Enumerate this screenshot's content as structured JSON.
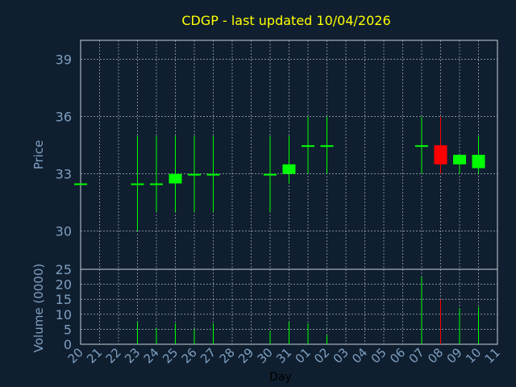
{
  "chart_data": [
    {
      "type": "candlestick",
      "title": "CDGP - last updated 10/04/2026",
      "ylabel": "Price",
      "ylim": [
        28,
        40
      ],
      "y_ticks": [
        30,
        33,
        36,
        39
      ],
      "categories": [
        "20",
        "21",
        "22",
        "23",
        "24",
        "25",
        "26",
        "27",
        "28",
        "29",
        "30",
        "31",
        "01",
        "02",
        "03",
        "04",
        "05",
        "06",
        "07",
        "08",
        "09",
        "10",
        "11"
      ],
      "candles": [
        {
          "day": "20",
          "open": 32.5,
          "high": 32.5,
          "low": 32.5,
          "close": 32.5
        },
        {
          "day": "23",
          "open": 32.5,
          "high": 35.0,
          "low": 30.0,
          "close": 32.5
        },
        {
          "day": "24",
          "open": 32.5,
          "high": 35.0,
          "low": 31.0,
          "close": 32.5
        },
        {
          "day": "25",
          "open": 32.5,
          "high": 35.0,
          "low": 31.0,
          "close": 33.0
        },
        {
          "day": "26",
          "open": 33.0,
          "high": 35.0,
          "low": 31.0,
          "close": 33.0
        },
        {
          "day": "27",
          "open": 33.0,
          "high": 35.0,
          "low": 31.0,
          "close": 33.0
        },
        {
          "day": "30",
          "open": 33.0,
          "high": 35.0,
          "low": 31.0,
          "close": 33.0
        },
        {
          "day": "31",
          "open": 33.0,
          "high": 35.0,
          "low": 32.5,
          "close": 33.5
        },
        {
          "day": "01",
          "open": 34.5,
          "high": 36.0,
          "low": 33.0,
          "close": 34.5
        },
        {
          "day": "02",
          "open": 34.5,
          "high": 36.0,
          "low": 33.0,
          "close": 34.5
        },
        {
          "day": "07",
          "open": 34.5,
          "high": 36.0,
          "low": 33.0,
          "close": 34.5
        },
        {
          "day": "08",
          "open": 34.5,
          "high": 36.0,
          "low": 33.0,
          "close": 33.5
        },
        {
          "day": "09",
          "open": 33.5,
          "high": 34.0,
          "low": 33.0,
          "close": 34.0
        },
        {
          "day": "10",
          "open": 33.3,
          "high": 35.0,
          "low": 33.0,
          "close": 34.0
        }
      ],
      "colors": {
        "up": "#00ff00",
        "down": "#ff0000",
        "grid": "#c8d0d8",
        "title": "#ffff00",
        "axis_text": "#7f9fbf"
      },
      "grid": true
    },
    {
      "type": "bar",
      "ylabel": "Volume (0000)",
      "xlabel": "Day",
      "ylim": [
        0,
        25
      ],
      "y_ticks": [
        0,
        5,
        10,
        15,
        20,
        25
      ],
      "categories": [
        "20",
        "21",
        "22",
        "23",
        "24",
        "25",
        "26",
        "27",
        "28",
        "29",
        "30",
        "31",
        "01",
        "02",
        "03",
        "04",
        "05",
        "06",
        "07",
        "08",
        "09",
        "10",
        "11"
      ],
      "bars": [
        {
          "day": "23",
          "value": 7.5,
          "direction": "up"
        },
        {
          "day": "24",
          "value": 5.5,
          "direction": "up"
        },
        {
          "day": "25",
          "value": 7.0,
          "direction": "up"
        },
        {
          "day": "26",
          "value": 5.0,
          "direction": "up"
        },
        {
          "day": "27",
          "value": 7.0,
          "direction": "up"
        },
        {
          "day": "30",
          "value": 4.5,
          "direction": "up"
        },
        {
          "day": "31",
          "value": 7.5,
          "direction": "up"
        },
        {
          "day": "01",
          "value": 7.0,
          "direction": "up"
        },
        {
          "day": "02",
          "value": 3.0,
          "direction": "up"
        },
        {
          "day": "07",
          "value": 22.5,
          "direction": "up"
        },
        {
          "day": "08",
          "value": 15.0,
          "direction": "down"
        },
        {
          "day": "09",
          "value": 12.0,
          "direction": "up"
        },
        {
          "day": "10",
          "value": 12.5,
          "direction": "up"
        }
      ],
      "grid": true
    }
  ]
}
